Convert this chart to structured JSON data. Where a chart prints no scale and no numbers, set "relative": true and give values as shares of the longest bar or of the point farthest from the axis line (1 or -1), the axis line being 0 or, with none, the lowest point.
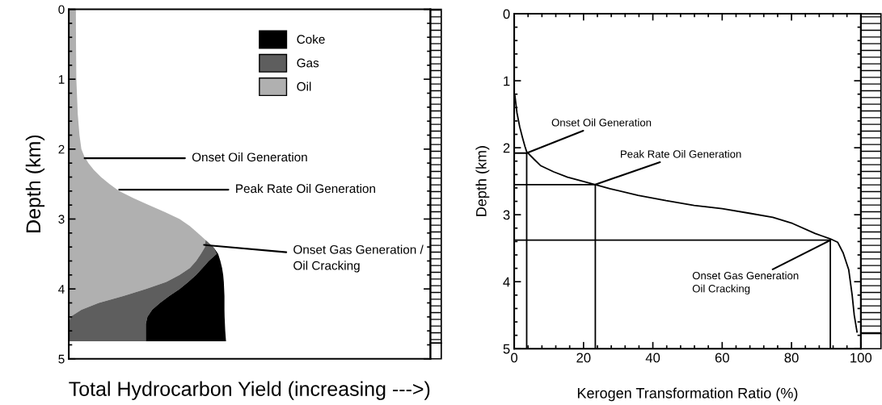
{
  "chart_data": [
    {
      "type": "area",
      "stacked": true,
      "orientation": "horizontal",
      "relative": true,
      "xlabel": "Total Hydrocarbon Yield (increasing --->)",
      "ylabel": "Depth (km)",
      "x": [
        0,
        0.5,
        1.0,
        1.5,
        1.8,
        2.0,
        2.1,
        2.2,
        2.3,
        2.4,
        2.5,
        2.6,
        2.7,
        2.8,
        2.9,
        3.0,
        3.1,
        3.2,
        3.3,
        3.4,
        3.5,
        3.6,
        3.7,
        3.8,
        3.9,
        4.0,
        4.1,
        4.2,
        4.3,
        4.4,
        4.5,
        4.6,
        4.75
      ],
      "ylim": [
        5,
        0
      ],
      "yticks": [
        0,
        1,
        2,
        3,
        4,
        5
      ],
      "tick_labels": "y",
      "grid": false,
      "legend": "top right",
      "series": [
        {
          "name": "Oil",
          "color": "#b0b0b0",
          "values": [
            0.045,
            0.046,
            0.048,
            0.057,
            0.068,
            0.08,
            0.098,
            0.125,
            0.16,
            0.205,
            0.26,
            0.32,
            0.41,
            0.51,
            0.61,
            0.705,
            0.77,
            0.82,
            0.87,
            0.866,
            0.84,
            0.81,
            0.77,
            0.705,
            0.62,
            0.49,
            0.35,
            0.19,
            0.08,
            0.01,
            0,
            0,
            0
          ]
        },
        {
          "name": "Gas",
          "color": "#5e5e5e",
          "values": [
            0,
            0,
            0,
            0,
            0,
            0,
            0,
            0,
            0,
            0,
            0,
            0,
            0,
            0,
            0,
            0,
            0,
            0,
            0,
            0.054,
            0.1,
            0.08,
            0.08,
            0.105,
            0.14,
            0.215,
            0.29,
            0.39,
            0.45,
            0.49,
            0.49,
            0.49,
            0.49
          ]
        },
        {
          "name": "Coke",
          "color": "#000000",
          "values": [
            0,
            0,
            0,
            0,
            0,
            0,
            0,
            0,
            0,
            0,
            0,
            0,
            0,
            0,
            0,
            0,
            0,
            0,
            0,
            0,
            0.01,
            0.074,
            0.125,
            0.172,
            0.226,
            0.283,
            0.35,
            0.41,
            0.46,
            0.491,
            0.503,
            0.505,
            0.51
          ]
        }
      ],
      "annotations": [
        {
          "text": "Onset Oil Generation",
          "x": 0.1,
          "y": 2.13
        },
        {
          "text": "Peak Rate Oil Generation",
          "x": 0.32,
          "y": 2.58
        },
        {
          "text": "Onset Gas Generation /\nOil Cracking",
          "x": 0.86,
          "y": 3.37
        }
      ]
    },
    {
      "type": "line",
      "xlabel": "Kerogen Transformation Ratio (%)",
      "ylabel": "Depth (km)",
      "xlim": [
        0,
        100
      ],
      "xticks": [
        0,
        20,
        40,
        60,
        80,
        100
      ],
      "ylim": [
        5,
        0
      ],
      "yticks": [
        0,
        1,
        2,
        3,
        4,
        5
      ],
      "grid": false,
      "marker": "none",
      "line_style": "solid",
      "series": [
        {
          "color": "#000000",
          "x": [
            0.2,
            0.8,
            1.6,
            2.4,
            3.1,
            3.6,
            5.7,
            7.7,
            11.4,
            15.4,
            23.4,
            27.6,
            35.7,
            43.8,
            51.9,
            60,
            68.1,
            74.6,
            80.3,
            86.8,
            91.2,
            93.3,
            94.9,
            96.5,
            97.5,
            98.1,
            98.9
          ],
          "values": [
            1.22,
            1.48,
            1.69,
            1.85,
            1.98,
            2.06,
            2.17,
            2.27,
            2.36,
            2.44,
            2.55,
            2.61,
            2.71,
            2.79,
            2.86,
            2.91,
            2.98,
            3.04,
            3.13,
            3.28,
            3.36,
            3.41,
            3.57,
            3.82,
            4.2,
            4.5,
            4.75
          ]
        },
        {
          "color": "#000000",
          "x": [
            0,
            3.6,
            3.6
          ],
          "values": [
            2.08,
            2.08,
            5
          ]
        },
        {
          "color": "#000000",
          "x": [
            0,
            23.4,
            23.4
          ],
          "values": [
            2.55,
            2.55,
            5
          ]
        },
        {
          "color": "#000000",
          "x": [
            0,
            91.2,
            91.2
          ],
          "values": [
            3.38,
            3.38,
            5
          ]
        }
      ],
      "annotations": [
        {
          "text": "Onset Oil Generation",
          "x": 3.6,
          "y": 2.08
        },
        {
          "text": "Peak Rate Oil Generation",
          "x": 23.4,
          "y": 2.55
        },
        {
          "text": "Onset Gas Generation\nOil Cracking",
          "x": 91.2,
          "y": 3.38
        }
      ]
    }
  ]
}
